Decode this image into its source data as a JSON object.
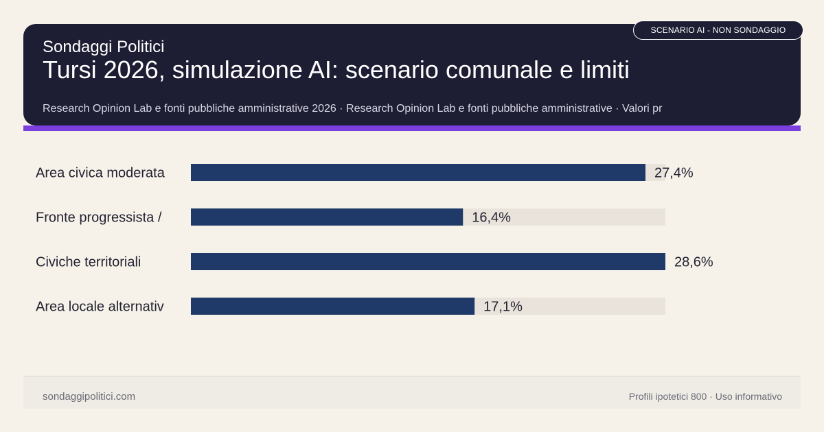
{
  "header": {
    "site_name": "Sondaggi Politici",
    "title": "Tursi 2026, simulazione AI: scenario comunale e limiti",
    "subtitle": "Research Opinion Lab e fonti pubbliche amministrative 2026 · Research Opinion Lab e fonti pubbliche amministrative · Valori pr",
    "badge": "SCENARIO AI - NON SONDAGGIO"
  },
  "footer": {
    "left": "sondaggipolitici.com",
    "right": "Profili ipotetici 800 · Uso informativo"
  },
  "colors": {
    "bar": "#1f3a68",
    "track": "#e9e3dc",
    "header_bg": "#1d1d33",
    "accent": "#7b3fe0"
  },
  "chart_data": {
    "type": "bar",
    "orientation": "horizontal",
    "categories": [
      "Area civica moderata",
      "Fronte progressista /",
      "Civiche territoriali",
      "Area locale alternativ"
    ],
    "values": [
      27.4,
      16.4,
      28.6,
      17.1
    ],
    "value_labels": [
      "27,4%",
      "16,4%",
      "28,6%",
      "17,1%"
    ],
    "xlim": [
      0,
      28.6
    ],
    "unit": "%",
    "grid": false,
    "legend": "none"
  }
}
